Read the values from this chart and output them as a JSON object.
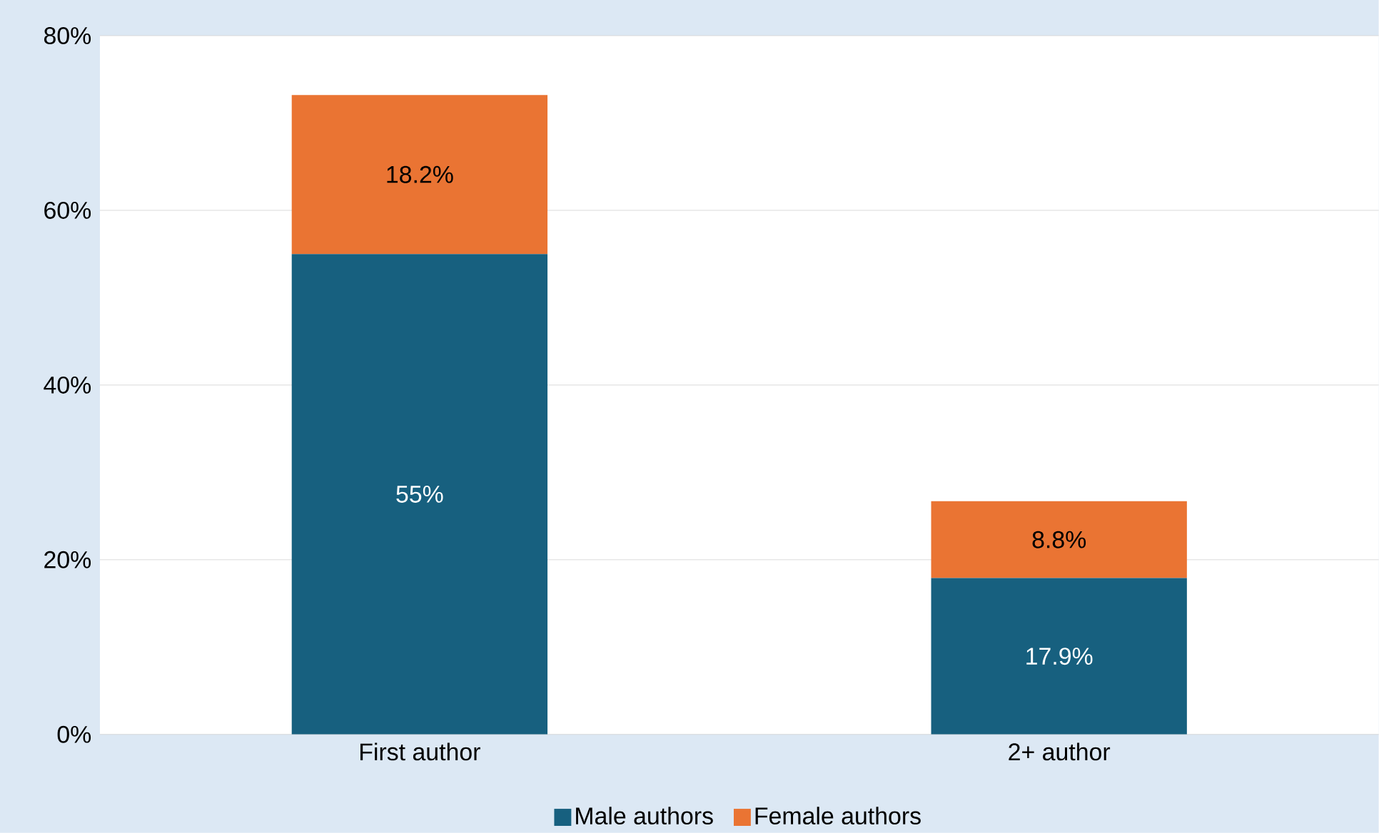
{
  "chart_data": {
    "type": "bar",
    "stacked": true,
    "categories": [
      "First author",
      "2+ author"
    ],
    "series": [
      {
        "name": "Male authors",
        "color": "#17607f",
        "values": [
          55,
          17.9
        ],
        "value_labels": [
          "55%",
          "17.9%"
        ]
      },
      {
        "name": "Female authors",
        "color": "#ea7433",
        "values": [
          18.2,
          8.8
        ],
        "value_labels": [
          "18.2%",
          "8.8%"
        ]
      }
    ],
    "ylim": [
      0,
      80
    ],
    "yticks": [
      {
        "value": 0,
        "label": "0%"
      },
      {
        "value": 20,
        "label": "20%"
      },
      {
        "value": 40,
        "label": "40%"
      },
      {
        "value": 60,
        "label": "60%"
      },
      {
        "value": 80,
        "label": "80%"
      }
    ],
    "grid": "y",
    "legend": "bottom"
  }
}
